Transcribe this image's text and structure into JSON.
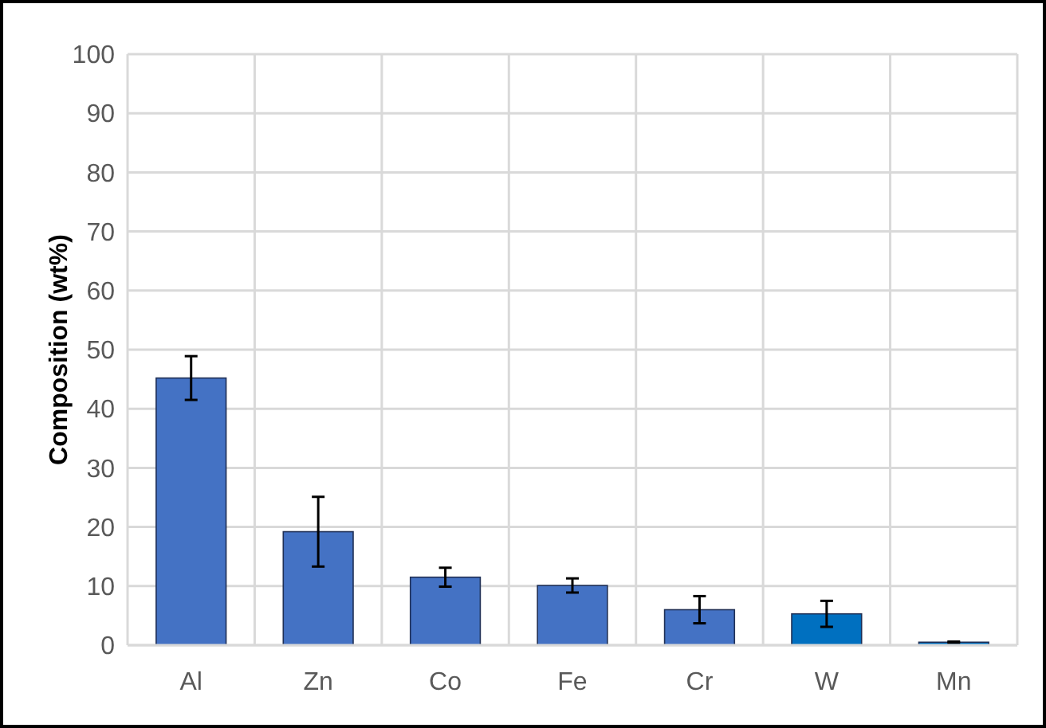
{
  "chart_data": {
    "type": "bar",
    "ylabel": "Composition (wt%)",
    "categories": [
      "Al",
      "Zn",
      "Co",
      "Fe",
      "Cr",
      "W",
      "Mn"
    ],
    "values": [
      45.2,
      19.2,
      11.5,
      10.1,
      6.0,
      5.3,
      0.5
    ],
    "errors": [
      3.7,
      5.9,
      1.6,
      1.2,
      2.3,
      2.2,
      0.1
    ],
    "colors": [
      "#4472c4",
      "#4472c4",
      "#4472c4",
      "#4472c4",
      "#4472c4",
      "#0070c0",
      "#0070c0"
    ],
    "ylim": [
      0,
      100
    ],
    "yticks": [
      0,
      10,
      20,
      30,
      40,
      50,
      60,
      70,
      80,
      90,
      100
    ],
    "grid": true
  }
}
